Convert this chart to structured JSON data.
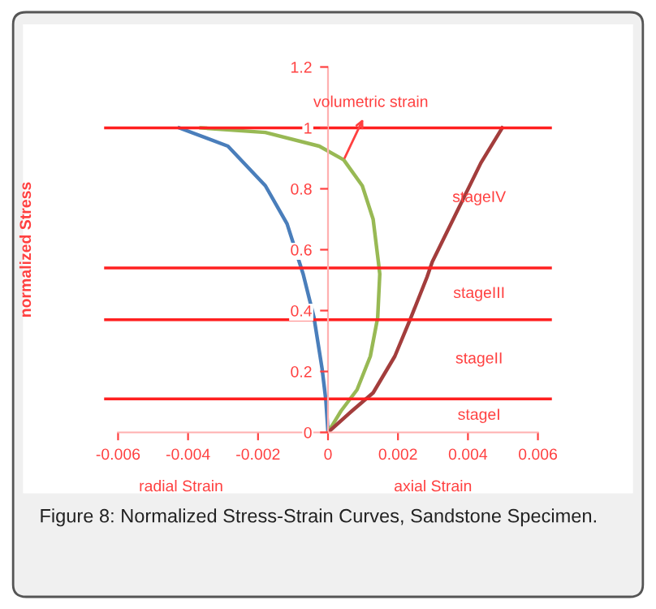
{
  "chart_data": {
    "type": "line",
    "ylabel": "normalized Stress",
    "xlabel": "axial Strain",
    "xlim": [
      -0.006,
      0.006
    ],
    "xticks": [
      -0.006,
      -0.004,
      -0.002,
      0,
      0.002,
      0.004,
      0.006
    ],
    "ylim": [
      0,
      1.2
    ],
    "yticks": [
      0,
      0.2,
      0.4,
      0.6,
      0.8,
      1,
      1.2
    ],
    "grid": false,
    "legend": false,
    "marker": "none",
    "line_style": "solid",
    "series": [
      {
        "color": "#4a7ebb",
        "x": [
          -0.00425,
          -0.00286,
          -0.00179,
          -0.00117,
          -0.00071,
          -0.0004,
          -0.00017,
          -6e-05,
          0
        ],
        "values": [
          1.0,
          0.94,
          0.81,
          0.685,
          0.52,
          0.377,
          0.21,
          0.105,
          0
        ]
      },
      {
        "color": "#98b954",
        "x": [
          -0.00363,
          -0.00179,
          -0.00025,
          0.00045,
          0.00098,
          0.00129,
          0.00144,
          0.00148,
          0.00142,
          0.00121,
          0.00083,
          0.00037,
          0
        ],
        "values": [
          1.0,
          0.985,
          0.94,
          0.895,
          0.81,
          0.7,
          0.56,
          0.52,
          0.377,
          0.25,
          0.14,
          0.07,
          0
        ]
      },
      {
        "color": "#a33d3c",
        "x": [
          0,
          0.00068,
          0.00129,
          0.00191,
          0.00237,
          0.00283,
          0.00298,
          0.00375,
          0.00437,
          0.00498
        ],
        "values": [
          0,
          0.07,
          0.13,
          0.25,
          0.377,
          0.51,
          0.56,
          0.74,
          0.885,
          1.0
        ]
      }
    ],
    "ref_lines": [
      {
        "axis": "y",
        "value": 1.0,
        "color": "#ff2020"
      },
      {
        "axis": "y",
        "value": 0.54,
        "color": "#ff2020"
      },
      {
        "axis": "y",
        "value": 0.37,
        "color": "#ff2020"
      },
      {
        "axis": "y",
        "value": 0.11,
        "color": "#ff2020"
      }
    ],
    "annotations": [
      {
        "text": "volumetric strain",
        "x": 0.00045,
        "y": 0.895
      },
      "stageIV",
      "stageIII",
      "stageII",
      "stageI",
      "radial Strain",
      "Figure 8: Normalized Stress-Strain Curves, Sandstone Specimen."
    ]
  }
}
